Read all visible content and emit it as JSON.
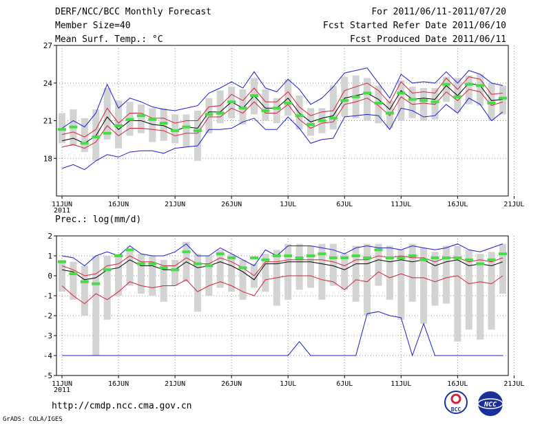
{
  "header": {
    "title": "DERF/NCC/BCC Monthly Forecast",
    "member_size": "Member Size=40",
    "variable": "Mean Surf. Temp.: °C",
    "period": "For 2011/06/11-2011/07/20",
    "started": "Fcst Started Refer Date 2011/06/10",
    "produced": "Fcst Produced Date 2011/06/11"
  },
  "footer": {
    "url": "http://cmdp.ncc.cma.gov.cn",
    "grads": "GrADS: COLA/IGES",
    "logo1_text": "BCC",
    "logo2_text": "NCC"
  },
  "colors": {
    "bar": "#d3d3d3",
    "mean": "#000000",
    "spread": "#d4203a",
    "range": "#1a1ad4",
    "obs": "#44dd44",
    "grid": "#888888"
  },
  "chart_data": [
    {
      "type": "line",
      "title": "Mean Surf. Temp.: °C",
      "ylim": [
        15,
        27
      ],
      "yticks": [
        18,
        21,
        24,
        27
      ],
      "xlim": [
        0,
        40
      ],
      "xticks": [
        {
          "x": 0,
          "label": "11JUN",
          "sub": "2011"
        },
        {
          "x": 5,
          "label": "16JUN"
        },
        {
          "x": 10,
          "label": "21JUN"
        },
        {
          "x": 15,
          "label": "26JUN"
        },
        {
          "x": 20,
          "label": "1JUL"
        },
        {
          "x": 25,
          "label": "6JUL"
        },
        {
          "x": 30,
          "label": "11JUL"
        },
        {
          "x": 35,
          "label": "16JUL"
        },
        {
          "x": 40,
          "label": "21JUL"
        }
      ],
      "series": [
        {
          "name": "ensemble_mean",
          "values": [
            19.4,
            19.6,
            19.2,
            19.8,
            21.3,
            20.3,
            21.0,
            21.0,
            20.7,
            20.6,
            20.2,
            20.5,
            20.4,
            21.7,
            21.7,
            22.5,
            22.0,
            23.0,
            22.0,
            22.0,
            22.8,
            21.6,
            20.9,
            21.2,
            21.4,
            22.8,
            23.0,
            23.2,
            22.7,
            21.9,
            23.4,
            22.7,
            22.8,
            22.7,
            23.8,
            23.0,
            24.0,
            23.8,
            22.6,
            22.7
          ]
        },
        {
          "name": "upper_spread",
          "values": [
            19.9,
            20.1,
            19.7,
            20.3,
            22.0,
            20.8,
            21.6,
            21.6,
            21.2,
            21.2,
            20.8,
            21.0,
            21.0,
            22.1,
            22.2,
            23.1,
            22.6,
            23.6,
            22.5,
            22.5,
            23.3,
            22.1,
            21.4,
            21.7,
            21.8,
            23.4,
            23.7,
            24.0,
            23.4,
            22.4,
            24.1,
            23.2,
            23.3,
            23.2,
            24.4,
            23.5,
            24.5,
            24.3,
            23.1,
            23.2
          ]
        },
        {
          "name": "lower_spread",
          "values": [
            18.9,
            19.1,
            18.8,
            19.3,
            20.6,
            19.8,
            20.4,
            20.4,
            20.3,
            20.2,
            19.8,
            20.0,
            20.0,
            21.3,
            21.3,
            22.0,
            21.6,
            22.5,
            21.6,
            21.6,
            22.3,
            21.1,
            20.4,
            20.8,
            20.9,
            22.3,
            22.5,
            22.8,
            22.2,
            21.4,
            22.9,
            22.3,
            22.4,
            22.3,
            23.3,
            22.6,
            23.5,
            23.3,
            22.2,
            22.5
          ]
        },
        {
          "name": "member_max",
          "values": [
            20.4,
            21.0,
            20.5,
            21.6,
            23.9,
            22.0,
            22.8,
            22.5,
            22.1,
            21.9,
            21.8,
            22.0,
            22.2,
            23.2,
            23.6,
            24.1,
            23.6,
            24.9,
            23.6,
            23.3,
            24.3,
            23.5,
            22.3,
            22.8,
            23.7,
            24.8,
            25.0,
            25.2,
            24.0,
            22.8,
            24.7,
            24.0,
            24.1,
            24.0,
            24.9,
            24.0,
            25.0,
            24.7,
            24.0,
            23.8
          ]
        },
        {
          "name": "member_min",
          "values": [
            17.2,
            17.5,
            17.1,
            17.8,
            18.3,
            18.1,
            18.5,
            18.6,
            18.6,
            18.4,
            18.8,
            18.9,
            19.0,
            20.3,
            20.3,
            20.4,
            20.9,
            21.2,
            20.3,
            20.3,
            21.3,
            20.4,
            19.2,
            19.5,
            19.6,
            21.3,
            21.4,
            21.5,
            21.4,
            20.3,
            22.0,
            21.8,
            21.3,
            21.4,
            22.3,
            21.6,
            22.8,
            22.3,
            21.0,
            21.7
          ]
        }
      ],
      "bars": {
        "low": [
          19.2,
          19.0,
          18.5,
          17.8,
          19.5,
          18.8,
          19.8,
          20.0,
          19.3,
          19.4,
          19.2,
          18.9,
          17.8,
          20.0,
          20.8,
          21.2,
          20.7,
          21.5,
          21.0,
          20.8,
          21.4,
          20.3,
          19.8,
          20.0,
          20.3,
          21.3,
          21.2,
          21.0,
          20.8,
          20.4,
          21.0,
          21.2,
          21.0,
          21.1,
          22.5,
          21.7,
          22.3,
          22.2,
          21.0,
          21.5
        ],
        "high": [
          21.6,
          21.9,
          21.2,
          21.9,
          23.6,
          22.6,
          22.5,
          22.3,
          22.0,
          22.0,
          21.5,
          21.5,
          21.8,
          22.8,
          23.4,
          23.7,
          23.5,
          24.4,
          23.5,
          22.8,
          24.3,
          23.0,
          22.0,
          22.0,
          23.8,
          24.5,
          24.6,
          24.4,
          23.8,
          22.6,
          24.2,
          23.7,
          23.6,
          23.6,
          24.5,
          24.4,
          24.6,
          24.7,
          24.0,
          23.8
        ]
      },
      "observed": [
        20.3,
        20.5,
        19.2,
        19.7,
        20.0,
        20.6,
        21.1,
        21.4,
        21.1,
        20.8,
        20.2,
        20.5,
        20.2,
        21.5,
        21.6,
        22.5,
        22.0,
        23.0,
        21.8,
        22.0,
        22.4,
        21.4,
        20.7,
        21.0,
        21.2,
        22.6,
        22.9,
        23.2,
        22.4,
        21.6,
        23.2,
        22.7,
        22.6,
        22.5,
        23.9,
        22.9,
        23.9,
        23.8,
        22.4,
        22.8
      ]
    },
    {
      "type": "line",
      "title": "Prec.: log(mm/d)",
      "ylim": [
        -5,
        2
      ],
      "yticks": [
        -5,
        -4,
        -3,
        -2,
        -1,
        0,
        1,
        2
      ],
      "xlim": [
        0,
        40
      ],
      "xticks": [
        {
          "x": 0,
          "label": "11JUN",
          "sub": "2011"
        },
        {
          "x": 5,
          "label": "16JUN"
        },
        {
          "x": 10,
          "label": "21JUN"
        },
        {
          "x": 15,
          "label": "26JUN"
        },
        {
          "x": 20,
          "label": "1JUL"
        },
        {
          "x": 25,
          "label": "6JUL"
        },
        {
          "x": 30,
          "label": "11JUL"
        },
        {
          "x": 35,
          "label": "16JUL"
        },
        {
          "x": 40,
          "label": "21JUL"
        }
      ],
      "series": [
        {
          "name": "ensemble_mean",
          "values": [
            0.3,
            0.2,
            -0.2,
            -0.1,
            0.3,
            0.4,
            0.8,
            0.5,
            0.5,
            0.3,
            0.3,
            0.7,
            0.4,
            0.5,
            0.7,
            0.5,
            0.2,
            -0.2,
            0.6,
            0.6,
            0.7,
            0.7,
            0.7,
            0.6,
            0.5,
            0.3,
            0.6,
            0.6,
            0.8,
            0.7,
            0.8,
            0.7,
            0.8,
            0.5,
            0.7,
            0.8,
            0.5,
            0.6,
            0.5,
            0.7
          ]
        },
        {
          "name": "upper_spread",
          "values": [
            0.5,
            0.3,
            0.0,
            0.1,
            0.5,
            0.6,
            1.0,
            0.7,
            0.7,
            0.5,
            0.5,
            0.9,
            0.6,
            0.6,
            0.9,
            0.7,
            0.4,
            0.0,
            0.7,
            0.7,
            0.8,
            0.8,
            0.8,
            0.8,
            0.7,
            0.5,
            0.8,
            0.8,
            1.0,
            0.9,
            1.0,
            0.9,
            0.9,
            0.7,
            0.9,
            0.9,
            0.7,
            0.8,
            0.7,
            0.9
          ]
        },
        {
          "name": "lower_spread",
          "values": [
            -0.5,
            -1.0,
            -1.4,
            -0.9,
            -1.2,
            -0.8,
            -0.3,
            -0.5,
            -0.6,
            -0.5,
            -0.5,
            -0.2,
            -0.8,
            -0.5,
            -0.3,
            -0.5,
            -0.8,
            -1.0,
            -0.2,
            -0.1,
            0.0,
            0.0,
            0.0,
            -0.2,
            -0.3,
            -0.7,
            -0.2,
            -0.3,
            0.2,
            -0.1,
            0.1,
            -0.1,
            -0.1,
            -0.3,
            -0.1,
            0.0,
            -0.4,
            -0.3,
            -0.4,
            0.0
          ]
        },
        {
          "name": "member_max",
          "values": [
            1.0,
            0.9,
            0.5,
            1.0,
            1.2,
            1.0,
            1.5,
            1.1,
            1.0,
            1.0,
            1.2,
            1.6,
            1.0,
            1.0,
            1.4,
            1.1,
            0.8,
            0.5,
            1.3,
            1.0,
            1.5,
            1.5,
            1.5,
            1.4,
            1.3,
            1.1,
            1.4,
            1.5,
            1.4,
            1.4,
            1.3,
            1.5,
            1.4,
            1.3,
            1.4,
            1.6,
            1.3,
            1.2,
            1.4,
            1.6
          ]
        },
        {
          "name": "member_min",
          "values": [
            -4,
            -4,
            -4,
            -4,
            -4,
            -4,
            -4,
            -4,
            -4,
            -4,
            -4,
            -4,
            -4,
            -4,
            -4,
            -4,
            -4,
            -4,
            -4,
            -4,
            -4,
            -3.3,
            -4,
            -4,
            -4,
            -4,
            -4,
            -1.9,
            -1.8,
            -2.0,
            -2.1,
            -4,
            -2.4,
            -4,
            -4,
            -4,
            -4,
            -4,
            -4,
            -4
          ]
        }
      ],
      "bars": {
        "low": [
          -0.8,
          -1.2,
          -2.0,
          -4.0,
          -2.2,
          -1.0,
          -0.5,
          -0.9,
          -1.0,
          -1.3,
          -0.5,
          -0.3,
          -1.8,
          -1.0,
          -0.6,
          -0.8,
          -1.2,
          -0.6,
          -0.8,
          -1.5,
          -1.2,
          -0.7,
          -0.6,
          -1.2,
          -0.5,
          -0.7,
          -1.3,
          -2.0,
          -0.5,
          -1.2,
          -2.2,
          -1.3,
          -2.4,
          -1.5,
          -1.4,
          -3.3,
          -2.7,
          -3.2,
          -2.7,
          -0.9
        ]
      },
      "bars_high": [
        0.8,
        0.7,
        0.5,
        1.0,
        1.0,
        1.1,
        1.3,
        1.1,
        1.0,
        0.8,
        0.8,
        1.7,
        1.1,
        1.0,
        1.3,
        1.1,
        0.8,
        0.6,
        1.1,
        1.3,
        1.6,
        1.6,
        1.5,
        1.6,
        1.6,
        1.1,
        1.5,
        1.6,
        1.6,
        1.5,
        1.3,
        1.6,
        1.4,
        1.2,
        1.5,
        1.5,
        1.3,
        1.1,
        1.2,
        1.6
      ],
      "observed": [
        0.7,
        0.1,
        -0.3,
        -0.4,
        0.3,
        1.0,
        1.3,
        0.6,
        0.6,
        0.4,
        0.3,
        1.2,
        0.6,
        0.5,
        1.1,
        0.9,
        0.4,
        0.9,
        0.8,
        1.0,
        1.0,
        0.9,
        1.0,
        1.1,
        0.9,
        0.9,
        1.0,
        0.9,
        1.3,
        0.9,
        0.9,
        1.0,
        0.8,
        0.9,
        0.9,
        0.9,
        0.8,
        0.6,
        0.8,
        1.1
      ]
    }
  ]
}
